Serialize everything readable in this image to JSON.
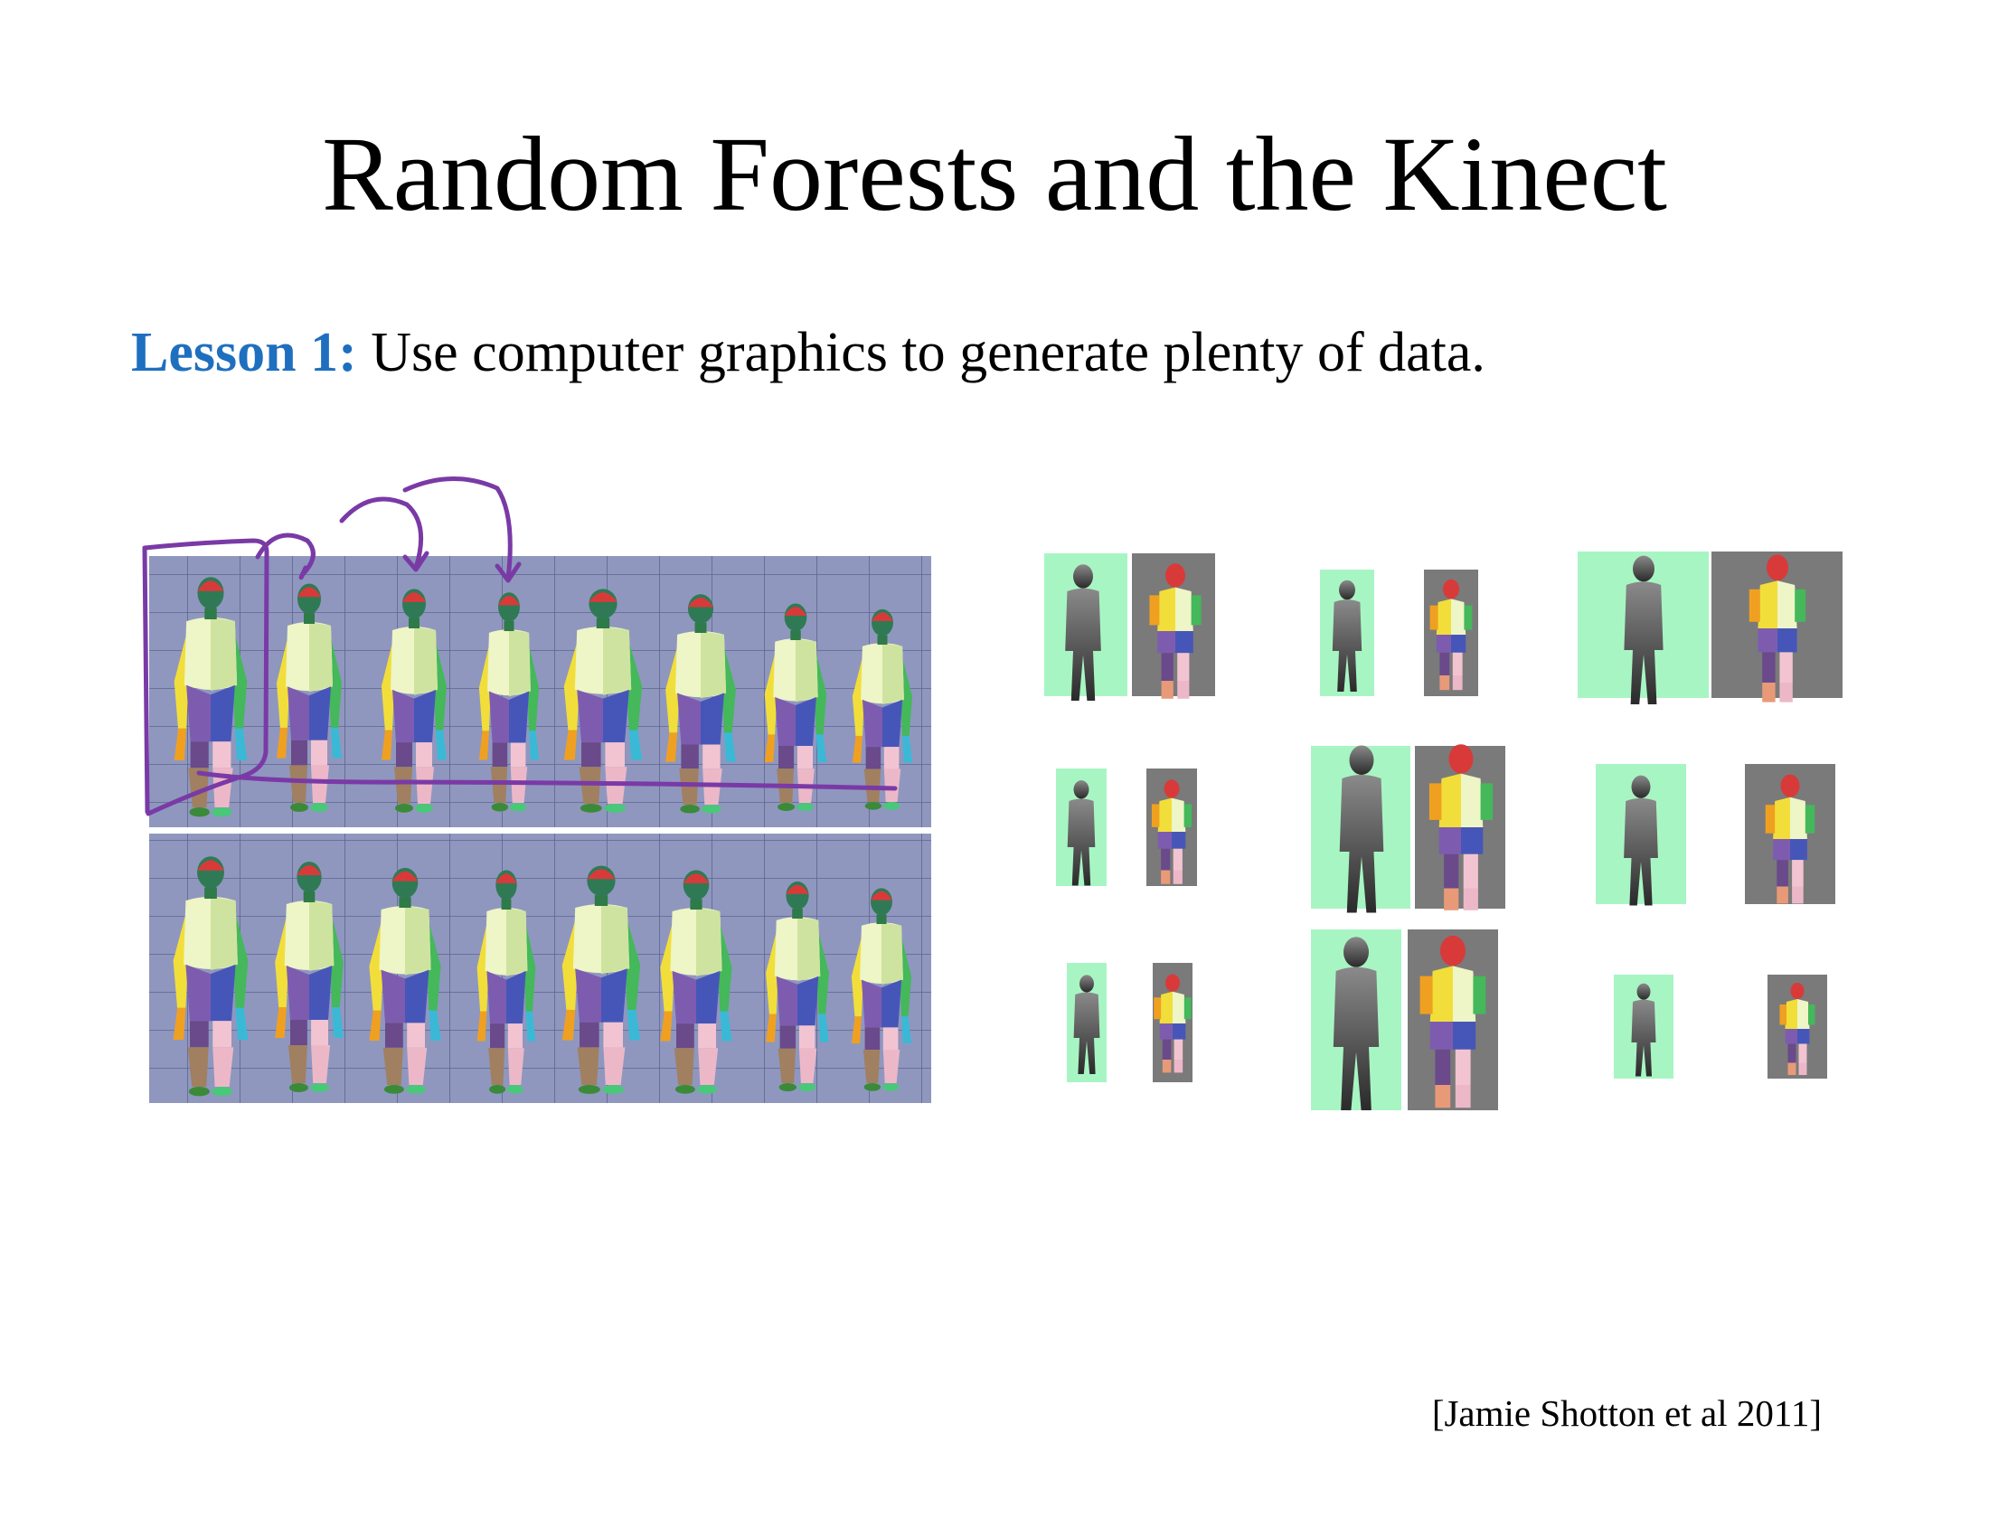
{
  "slide": {
    "title": "Random Forests and the Kinect",
    "lesson_label": "Lesson 1:",
    "lesson_text": " Use computer graphics to generate plenty of data.",
    "citation": "[Jamie Shotton et al 2011]"
  },
  "colors": {
    "title_text": "#000000",
    "lesson_label": "#1f6fbf",
    "grid_background": "#8f97bf",
    "depth_background": "#a8f5c4",
    "label_background": "#7a7a7a",
    "annotation_ink": "#7a3aa6"
  },
  "figures": {
    "synthetic_bodies": {
      "rows": 2,
      "figures_per_row": 8
    },
    "depth_and_label_pairs": {
      "columns": 3,
      "rows": 3
    }
  }
}
